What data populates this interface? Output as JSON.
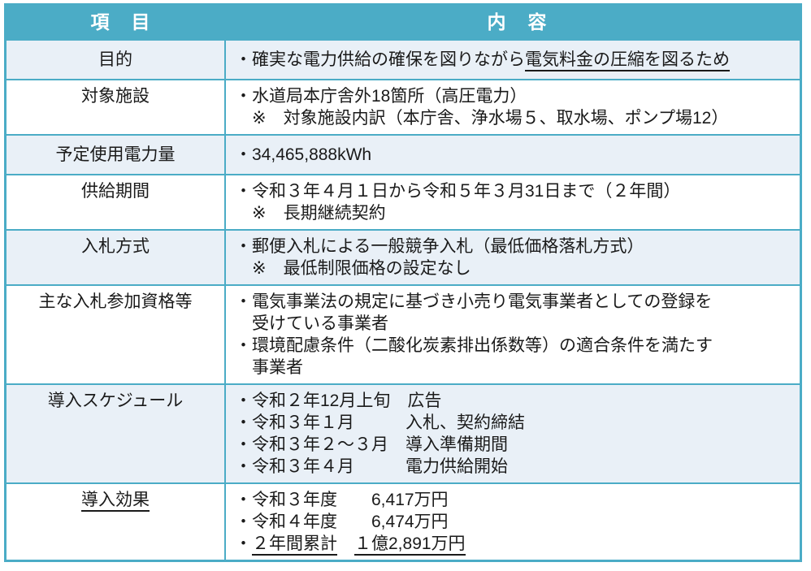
{
  "colors": {
    "header_bg": "#4BACC6",
    "border": "#4BACC6",
    "row_light": "#E9F0F7",
    "row_white": "#FFFFFF",
    "header_text": "#FFFFFF",
    "body_text": "#1A1A1A"
  },
  "header": {
    "item_label": "項　目",
    "content_label": "内　容"
  },
  "rows": [
    {
      "name": "purpose",
      "bg": "light",
      "label": [
        {
          "text": "目的"
        }
      ],
      "lines": [
        [
          {
            "text": "・確実な電力供給の確保を図りながら"
          },
          {
            "text": "電気料金の圧縮を図るため",
            "underline": true
          }
        ]
      ]
    },
    {
      "name": "target-facilities",
      "bg": "white",
      "label": [
        {
          "text": "対象施設"
        }
      ],
      "lines": [
        [
          {
            "text": "・水道局本庁舎外18箇所（高圧電力）"
          }
        ],
        [
          {
            "text": "　※　対象施設内訳（本庁舎、浄水場５、取水場、ポンプ場12）"
          }
        ]
      ]
    },
    {
      "name": "planned-power-usage",
      "bg": "light",
      "label": [
        {
          "text": "予定使用電力量"
        }
      ],
      "lines": [
        [
          {
            "text": "・34,465,888kWh"
          }
        ]
      ]
    },
    {
      "name": "supply-period",
      "bg": "white",
      "label": [
        {
          "text": "供給期間"
        }
      ],
      "lines": [
        [
          {
            "text": "・令和３年４月１日から令和５年３月31日まで（２年間）"
          }
        ],
        [
          {
            "text": "　※　長期継続契約"
          }
        ]
      ]
    },
    {
      "name": "bidding-method",
      "bg": "light",
      "label": [
        {
          "text": "入札方式"
        }
      ],
      "lines": [
        [
          {
            "text": "・郵便入札による一般競争入札（最低価格落札方式）"
          }
        ],
        [
          {
            "text": "　※　最低制限価格の設定なし"
          }
        ]
      ]
    },
    {
      "name": "bid-qualifications",
      "bg": "white",
      "label": [
        {
          "text": "主な入札参加資格等"
        }
      ],
      "lines": [
        [
          {
            "text": "・電気事業法の規定に基づき小売り電気事業者としての登録を"
          }
        ],
        [
          {
            "text": "　受けている事業者"
          }
        ],
        [
          {
            "text": "・環境配慮条件（二酸化炭素排出係数等）の適合条件を満たす"
          }
        ],
        [
          {
            "text": "　事業者"
          }
        ]
      ]
    },
    {
      "name": "introduction-schedule",
      "bg": "light",
      "label": [
        {
          "text": "導入スケジュール"
        }
      ],
      "lines": [
        [
          {
            "text": "・令和２年12月上旬　広告"
          }
        ],
        [
          {
            "text": "・令和３年１月　　　入札、契約締結"
          }
        ],
        [
          {
            "text": "・令和３年２～３月　導入準備期間"
          }
        ],
        [
          {
            "text": "・令和３年４月　　　電力供給開始"
          }
        ]
      ]
    },
    {
      "name": "introduction-effects",
      "bg": "white",
      "label": [
        {
          "text": "導入効果",
          "underline": true
        }
      ],
      "lines": [
        [
          {
            "text": "・令和３年度　　6,417万円"
          }
        ],
        [
          {
            "text": "・令和４年度　　6,474万円"
          }
        ],
        [
          {
            "text": "・"
          },
          {
            "text": "２年間累計",
            "underline": true
          },
          {
            "text": "　"
          },
          {
            "text": "１億2,891万円",
            "underline": true
          }
        ]
      ]
    }
  ]
}
